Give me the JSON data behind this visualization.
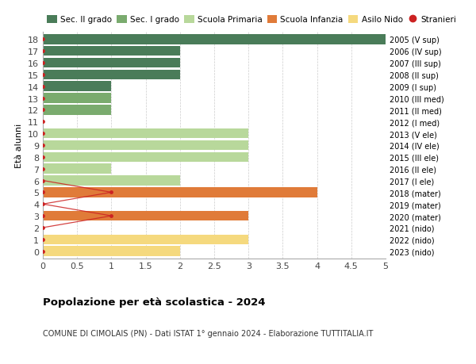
{
  "ages": [
    18,
    17,
    16,
    15,
    14,
    13,
    12,
    11,
    10,
    9,
    8,
    7,
    6,
    5,
    4,
    3,
    2,
    1,
    0
  ],
  "years": [
    "2005 (V sup)",
    "2006 (IV sup)",
    "2007 (III sup)",
    "2008 (II sup)",
    "2009 (I sup)",
    "2010 (III med)",
    "2011 (II med)",
    "2012 (I med)",
    "2013 (V ele)",
    "2014 (IV ele)",
    "2015 (III ele)",
    "2016 (II ele)",
    "2017 (I ele)",
    "2018 (mater)",
    "2019 (mater)",
    "2020 (mater)",
    "2021 (nido)",
    "2022 (nido)",
    "2023 (nido)"
  ],
  "bar_values": [
    5.0,
    2.0,
    2.0,
    2.0,
    1.0,
    1.0,
    1.0,
    0.0,
    3.0,
    3.0,
    3.0,
    1.0,
    2.0,
    4.0,
    0.0,
    3.0,
    0.0,
    3.0,
    2.0
  ],
  "bar_colors": [
    "#4a7c59",
    "#4a7c59",
    "#4a7c59",
    "#4a7c59",
    "#4a7c59",
    "#7aab6e",
    "#7aab6e",
    "#7aab6e",
    "#b8d89b",
    "#b8d89b",
    "#b8d89b",
    "#b8d89b",
    "#b8d89b",
    "#e07b39",
    "#e07b39",
    "#e07b39",
    "#f5d97e",
    "#f5d97e",
    "#f5d97e"
  ],
  "stranieri_color": "#cc2222",
  "stranieri_line_ages": [
    6,
    5,
    4,
    3,
    2
  ],
  "stranieri_line_x": [
    0,
    1.0,
    0,
    1.0,
    0
  ],
  "legend_labels": [
    "Sec. II grado",
    "Sec. I grado",
    "Scuola Primaria",
    "Scuola Infanzia",
    "Asilo Nido",
    "Stranieri"
  ],
  "legend_colors": [
    "#4a7c59",
    "#7aab6e",
    "#b8d89b",
    "#e07b39",
    "#f5d97e",
    "#cc2222"
  ],
  "title": "Popolazione per età scolastica - 2024",
  "subtitle": "COMUNE DI CIMOLAIS (PN) - Dati ISTAT 1° gennaio 2024 - Elaborazione TUTTITALIA.IT",
  "ylabel_left": "Età alunni",
  "xlim": [
    0,
    5.0
  ],
  "xticks": [
    0,
    0.5,
    1.0,
    1.5,
    2.0,
    2.5,
    3.0,
    3.5,
    4.0,
    4.5,
    5.0
  ],
  "background_color": "#ffffff",
  "grid_color": "#cccccc",
  "bar_height": 0.85
}
